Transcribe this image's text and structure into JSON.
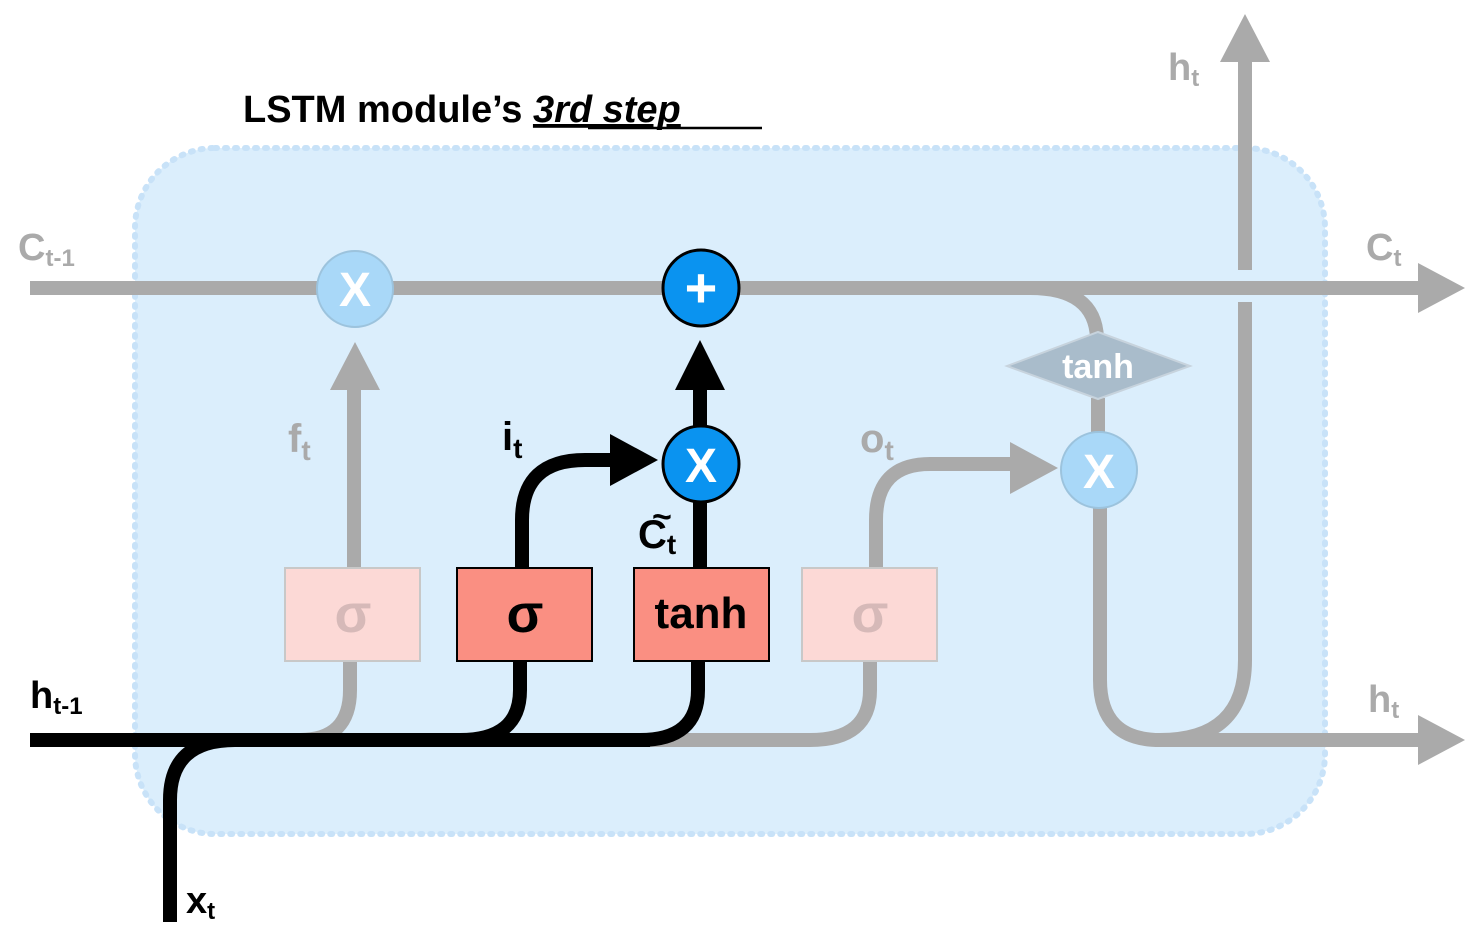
{
  "title": {
    "prefix": "LSTM module’s ",
    "emphasis": "3rd step"
  },
  "labels": {
    "c_prev": {
      "main": "C",
      "sub": "t-1"
    },
    "c_next": {
      "main": "C",
      "sub": "t"
    },
    "h_prev": {
      "main": "h",
      "sub": "t-1"
    },
    "h_out_right": {
      "main": "h",
      "sub": "t"
    },
    "h_out_top": {
      "main": "h",
      "sub": "t"
    },
    "x_in": {
      "main": "x",
      "sub": "t"
    },
    "forget_gate": {
      "main": "f",
      "sub": "t"
    },
    "input_gate": {
      "main": "i",
      "sub": "t"
    },
    "output_gate": {
      "main": "o",
      "sub": "t"
    },
    "candidate": {
      "main": "C",
      "sub": "t",
      "tilde": "~"
    }
  },
  "gates": {
    "forget_sigma": "σ",
    "input_sigma": "σ",
    "candidate_tanh": "tanh",
    "output_sigma": "σ",
    "cell_tanh": "tanh"
  },
  "operators": {
    "forget_multiply": "X",
    "cell_add": "+",
    "input_multiply": "X",
    "output_multiply": "X"
  },
  "colors": {
    "cell_background": "#dbeefc",
    "active_line": "#000000",
    "inactive_line": "#aaaaaa",
    "active_gate_fill": "#fa8f82",
    "inactive_gate_fill": "#fcd9d6",
    "active_operator_fill": "#0a93f0",
    "inactive_operator_fill": "#a9d8f8",
    "tanh_diamond_fill": "#a9bccb"
  }
}
